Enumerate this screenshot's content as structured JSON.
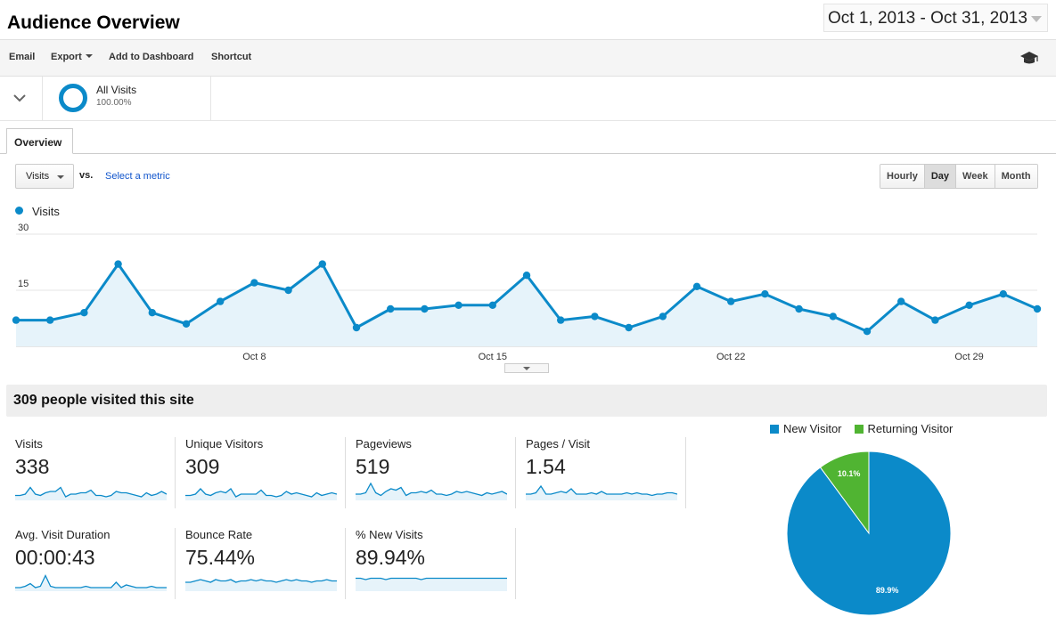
{
  "header": {
    "title": "Audience Overview",
    "date_range": "Oct 1, 2013 - Oct 31, 2013"
  },
  "toolbar": {
    "email": "Email",
    "export": "Export",
    "add_to_dashboard": "Add to Dashboard",
    "shortcut": "Shortcut",
    "icon": "graduation-cap-icon"
  },
  "segment": {
    "name": "All Visits",
    "percent": "100.00%"
  },
  "tabs": [
    "Overview"
  ],
  "chart_controls": {
    "metric": "Visits",
    "vs": "vs.",
    "select_metric": "Select a metric",
    "intervals": [
      "Hourly",
      "Day",
      "Week",
      "Month"
    ],
    "active_interval": "Day"
  },
  "colors": {
    "primary": "#0b8ac9",
    "secondary": "#50b432",
    "area_fill": "#e6f3fa"
  },
  "chart_data": {
    "type": "line",
    "series": [
      {
        "name": "Visits",
        "values": [
          7,
          7,
          9,
          22,
          9,
          6,
          12,
          17,
          15,
          22,
          5,
          10,
          10,
          11,
          11,
          19,
          7,
          8,
          5,
          8,
          16,
          12,
          14,
          10,
          8,
          4,
          12,
          7,
          11,
          14,
          10
        ]
      }
    ],
    "x": [
      "Oct 1",
      "Oct 2",
      "Oct 3",
      "Oct 4",
      "Oct 5",
      "Oct 6",
      "Oct 7",
      "Oct 8",
      "Oct 9",
      "Oct 10",
      "Oct 11",
      "Oct 12",
      "Oct 13",
      "Oct 14",
      "Oct 15",
      "Oct 16",
      "Oct 17",
      "Oct 18",
      "Oct 19",
      "Oct 20",
      "Oct 21",
      "Oct 22",
      "Oct 23",
      "Oct 24",
      "Oct 25",
      "Oct 26",
      "Oct 27",
      "Oct 28",
      "Oct 29",
      "Oct 30",
      "Oct 31"
    ],
    "x_tick_labels": [
      "Oct 8",
      "Oct 15",
      "Oct 22",
      "Oct 29"
    ],
    "y_ticks": [
      15,
      30
    ],
    "ylim": [
      0,
      30
    ],
    "legend": "top-left",
    "grid": true
  },
  "summary": {
    "headline": "309 people visited this site"
  },
  "kpis": [
    {
      "label": "Visits",
      "value": "338",
      "spark": [
        3,
        3,
        4,
        9,
        4,
        3,
        5,
        6,
        6,
        9,
        2,
        4,
        4,
        5,
        5,
        7,
        3,
        3,
        2,
        3,
        6,
        5,
        5,
        4,
        3,
        2,
        5,
        3,
        4,
        6,
        4
      ]
    },
    {
      "label": "Unique Visitors",
      "value": "309",
      "spark": [
        3,
        3,
        4,
        8,
        4,
        3,
        5,
        6,
        5,
        8,
        2,
        4,
        4,
        4,
        4,
        7,
        3,
        3,
        2,
        3,
        6,
        4,
        5,
        4,
        3,
        2,
        5,
        3,
        4,
        5,
        4
      ]
    },
    {
      "label": "Pageviews",
      "value": "519",
      "spark": [
        4,
        4,
        5,
        12,
        5,
        3,
        6,
        8,
        7,
        9,
        3,
        5,
        5,
        6,
        5,
        7,
        4,
        4,
        3,
        4,
        6,
        5,
        6,
        5,
        4,
        3,
        5,
        4,
        5,
        6,
        4
      ]
    },
    {
      "label": "Pages / Visit",
      "value": "1.54",
      "spark": [
        4,
        4,
        5,
        10,
        4,
        4,
        5,
        6,
        5,
        8,
        4,
        4,
        4,
        5,
        4,
        6,
        4,
        4,
        4,
        4,
        5,
        4,
        5,
        4,
        4,
        3,
        4,
        4,
        5,
        5,
        4
      ]
    },
    {
      "label": "Avg. Visit Duration",
      "value": "00:00:43",
      "spark": [
        2,
        2,
        3,
        5,
        2,
        3,
        11,
        3,
        2,
        2,
        2,
        2,
        2,
        2,
        3,
        2,
        2,
        2,
        2,
        2,
        6,
        2,
        4,
        3,
        2,
        2,
        2,
        3,
        2,
        2,
        2
      ]
    },
    {
      "label": "Bounce Rate",
      "value": "75.44%",
      "spark": [
        6,
        6,
        7,
        8,
        7,
        6,
        8,
        7,
        7,
        8,
        6,
        7,
        7,
        8,
        7,
        8,
        7,
        7,
        6,
        7,
        8,
        7,
        8,
        7,
        7,
        6,
        7,
        7,
        8,
        7,
        7
      ]
    },
    {
      "label": "% New Visits",
      "value": "89.94%",
      "spark": [
        9,
        9,
        8,
        9,
        9,
        9,
        8,
        9,
        9,
        9,
        9,
        9,
        9,
        8,
        9,
        9,
        9,
        9,
        9,
        9,
        9,
        9,
        9,
        9,
        9,
        9,
        9,
        9,
        9,
        9,
        9
      ]
    }
  ],
  "pie": {
    "type": "pie",
    "slices": [
      {
        "name": "New Visitor",
        "value": 89.9,
        "label": "89.9%",
        "color": "#0b8ac9"
      },
      {
        "name": "Returning Visitor",
        "value": 10.1,
        "label": "10.1%",
        "color": "#50b432"
      }
    ],
    "legend": "top"
  }
}
